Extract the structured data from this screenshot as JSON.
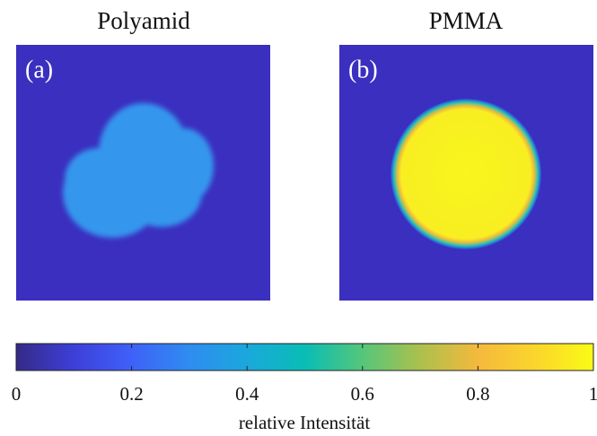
{
  "panels": [
    {
      "title": "Polyamid",
      "label": "(a)"
    },
    {
      "title": "PMMA",
      "label": "(b)"
    }
  ],
  "colorbar": {
    "label": "relative Intensität",
    "lim": [
      0,
      1
    ],
    "ticks": [
      0,
      0.2,
      0.4,
      0.6,
      0.8,
      1
    ]
  }
}
